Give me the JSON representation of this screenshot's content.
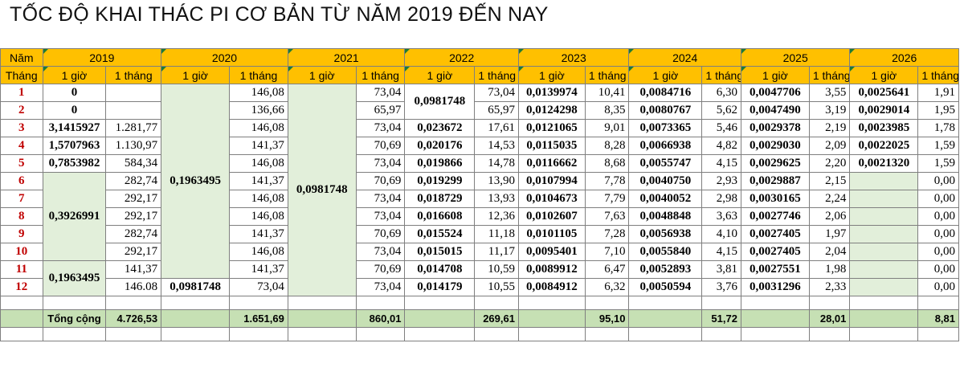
{
  "title": "TỐC ĐỘ KHAI THÁC PI CƠ BẢN TỪ NĂM 2019 ĐẾN NAY",
  "header": {
    "nam": "Năm",
    "thang": "Tháng",
    "years": [
      "2019",
      "2020",
      "2021",
      "2022",
      "2023",
      "2024",
      "2025",
      "2026"
    ],
    "hour": "1 giờ",
    "month": "1 tháng"
  },
  "months": [
    "1",
    "2",
    "3",
    "4",
    "5",
    "6",
    "7",
    "8",
    "9",
    "10",
    "11",
    "12"
  ],
  "y2019": {
    "rate_m1": "0",
    "rate_m2": "0",
    "rate_m3": "3,1415927",
    "rate_m4": "1,5707963",
    "rate_m5": "0,7853982",
    "rate_m6_10": "0,3926991",
    "rate_m11_12": "0,1963495",
    "monthly": [
      "",
      "",
      "1.281,77",
      "1.130,97",
      "584,34",
      "282,74",
      "292,17",
      "292,17",
      "282,74",
      "292,17",
      "141,37",
      "146.08"
    ]
  },
  "y2020": {
    "rate_m1_11": "0,1963495",
    "rate_m12": "0,0981748",
    "monthly": [
      "146,08",
      "136,66",
      "146,08",
      "141,37",
      "146,08",
      "141,37",
      "146,08",
      "146,08",
      "141,37",
      "146,08",
      "141,37",
      "73,04"
    ]
  },
  "y2021": {
    "rate": "0,0981748",
    "monthly": [
      "73,04",
      "65,97",
      "73,04",
      "70,69",
      "73,04",
      "70,69",
      "73,04",
      "73,04",
      "70,69",
      "73,04",
      "70,69",
      "73,04"
    ]
  },
  "y2022": {
    "rate_m1_2": "0,0981748",
    "rates": [
      "0,023672",
      "0,020176",
      "0,019866",
      "0,019299",
      "0,018729",
      "0,016608",
      "0,015524",
      "0,015015",
      "0,014708",
      "0,014179"
    ],
    "monthly": [
      "73,04",
      "65,97",
      "17,61",
      "14,53",
      "14,78",
      "13,90",
      "13,93",
      "12,36",
      "11,18",
      "11,17",
      "10,59",
      "10,55"
    ]
  },
  "y2023": {
    "rates": [
      "0,0139974",
      "0,0124298",
      "0,0121065",
      "0,0115035",
      "0,0116662",
      "0,0107994",
      "0,0104673",
      "0,0102607",
      "0,0101105",
      "0,0095401",
      "0,0089912",
      "0,0084912"
    ],
    "monthly": [
      "10,41",
      "8,35",
      "9,01",
      "8,28",
      "8,68",
      "7,78",
      "7,79",
      "7,63",
      "7,28",
      "7,10",
      "6,47",
      "6,32"
    ]
  },
  "y2024": {
    "rates": [
      "0,0084716",
      "0,0080767",
      "0,0073365",
      "0,0066938",
      "0,0055747",
      "0,0040750",
      "0,0040052",
      "0,0048848",
      "0,0056938",
      "0,0055840",
      "0,0052893",
      "0,0050594"
    ],
    "monthly": [
      "6,30",
      "5,62",
      "5,46",
      "4,82",
      "4,15",
      "2,93",
      "2,98",
      "3,63",
      "4,10",
      "4,15",
      "3,81",
      "3,76"
    ]
  },
  "y2025": {
    "rates": [
      "0,0047706",
      "0,0047490",
      "0,0029378",
      "0,0029030",
      "0,0029625",
      "0,0029887",
      "0,0030165",
      "0,0027746",
      "0,0027405",
      "0,0027405",
      "0,0027551",
      "0,0031296"
    ],
    "monthly": [
      "3,55",
      "3,19",
      "2,19",
      "2,09",
      "2,20",
      "2,15",
      "2,24",
      "2,06",
      "1,97",
      "2,04",
      "1,98",
      "2,33"
    ]
  },
  "y2026": {
    "rates": [
      "0,0025641",
      "0,0029014",
      "0,0023985",
      "0,0022025",
      "0,0021320",
      "",
      "",
      "",
      "",
      "",
      "",
      ""
    ],
    "monthly": [
      "1,91",
      "1,95",
      "1,78",
      "1,59",
      "1,59",
      "0,00",
      "0,00",
      "0,00",
      "0,00",
      "0,00",
      "0,00",
      "0,00"
    ]
  },
  "totals": {
    "label": "Tổng cộng",
    "values": [
      "4.726,53",
      "1.651,69",
      "860,01",
      "269,61",
      "95,10",
      "51,72",
      "28,01",
      "8,81"
    ]
  },
  "colors": {
    "header": "#ffc000",
    "green": "#e2efda",
    "total": "#c6e0b4",
    "month_text": "#c00000"
  }
}
